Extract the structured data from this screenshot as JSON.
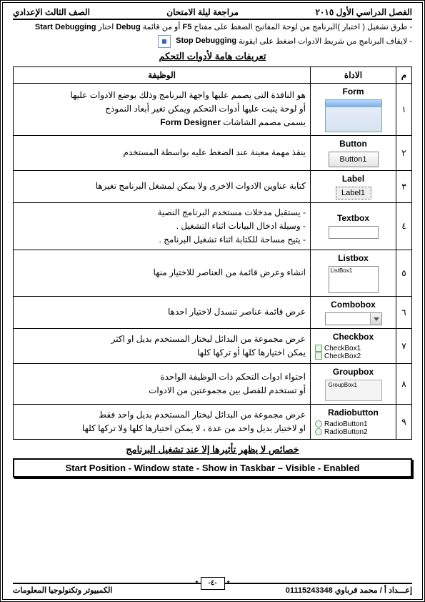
{
  "header": {
    "right": "الفصل الدراسي الأول ٢٠١٥",
    "center": "مراجعة ليلة الامتحان",
    "left": "الصف الثالث الإعدادي"
  },
  "intro": {
    "line1_pre": "طرق تشغيل ( اختبار )البرنامج من لوحة المفاتيح الضغط على مفتاح ",
    "line1_f5": "F5",
    "line1_mid": " أو من قائمة ",
    "line1_debug": "Debug",
    "line1_end": " اختار ",
    "line1_start": "Start Debugging",
    "line2_pre": "لايقاف البرنامج من شريط الادوات اضغط على ايقونة ",
    "line2_stop": "Stop Debugging"
  },
  "section_title": "تعريفات هامة لأدوات التحكم",
  "table": {
    "headers": {
      "num": "م",
      "tool": "الاداة",
      "desc": "الوظيفة"
    },
    "rows": [
      {
        "num": "١",
        "tool": "Form",
        "desc_lines": [
          "هو النافذة التى يصمم عليها واجهة البرنامج وذلك بوضع الادوات عليها",
          "أو لوحة يثبت عليها أدوات التحكم ويمكن تغير أبعاد النموذج",
          "يسمى مصمم الشاشات Form Designer"
        ],
        "icon": "form"
      },
      {
        "num": "٢",
        "tool": "Button",
        "btn_text": "Button1",
        "desc_lines": [
          "ينفذ مهمة معينة عند الضغط عليه بواسطة المستخدم"
        ],
        "icon": "button"
      },
      {
        "num": "٣",
        "tool": "Label",
        "label_text": "Label1",
        "desc_lines": [
          "كتابة عناوين الادوات الاخرى ولا يمكن لمشغل البرنامج تغيرها"
        ],
        "icon": "label"
      },
      {
        "num": "٤",
        "tool": "Textbox",
        "desc_lines": [
          "- يستقبل مدخلات مستخدم البرنامج النصية",
          "- وسيلة ادخال البيانات اثناء التشغيل .",
          "- يتيح مساحة للكتابة اثناء تشغيل البرنامج ."
        ],
        "icon": "textbox"
      },
      {
        "num": "٥",
        "tool": "Listbox",
        "list_text": "ListBox1",
        "desc_lines": [
          "انشاء وعرض قائمة من العناصر للاختيار منها"
        ],
        "icon": "listbox"
      },
      {
        "num": "٦",
        "tool": "Combobox",
        "desc_lines": [
          "عرض قائمة عناصر تنسدل لاختيار احدها"
        ],
        "icon": "combobox"
      },
      {
        "num": "٧",
        "tool": "Checkbox",
        "cb1": "CheckBox1",
        "cb2": "CheckBox2",
        "desc_lines": [
          "عرض مجموعة من البدائل ليختار المستخدم بديل او اكثر",
          "يمكن اختيارها كلها أو تركها كلها"
        ],
        "icon": "checkbox"
      },
      {
        "num": "٨",
        "tool": "Groupbox",
        "gb_text": "GroupBox1",
        "desc_lines": [
          "احتواء ادوات التحكم ذات الوظيفة الواحدة",
          "أو تستخدم للفصل بين مجموعتين من الادوات"
        ],
        "icon": "groupbox"
      },
      {
        "num": "٩",
        "tool": "Radiobutton",
        "rb1": "RadioButton1",
        "rb2": "RadioButton2",
        "desc_lines": [
          "عرض مجموعة من البدائل ليختار المستخدم بديل واحد فقط",
          "او لاختيار بديل واحد من عدة ، لا يمكن اختيارها كلها ولا تركها كلها"
        ],
        "icon": "radio"
      }
    ]
  },
  "props_title": "خصائص لا يظهر تأثيرها إلا عند تشغيل البرنامج",
  "props_box": "Start Position - Window state - Show in Taskbar – Visible - Enabled",
  "footer": {
    "right": "إعـــداد أ / محمد قرباوي 01115243348",
    "page": "-٤-",
    "left": "الكمبيوتر وتكنولوجيا المعلومات"
  }
}
